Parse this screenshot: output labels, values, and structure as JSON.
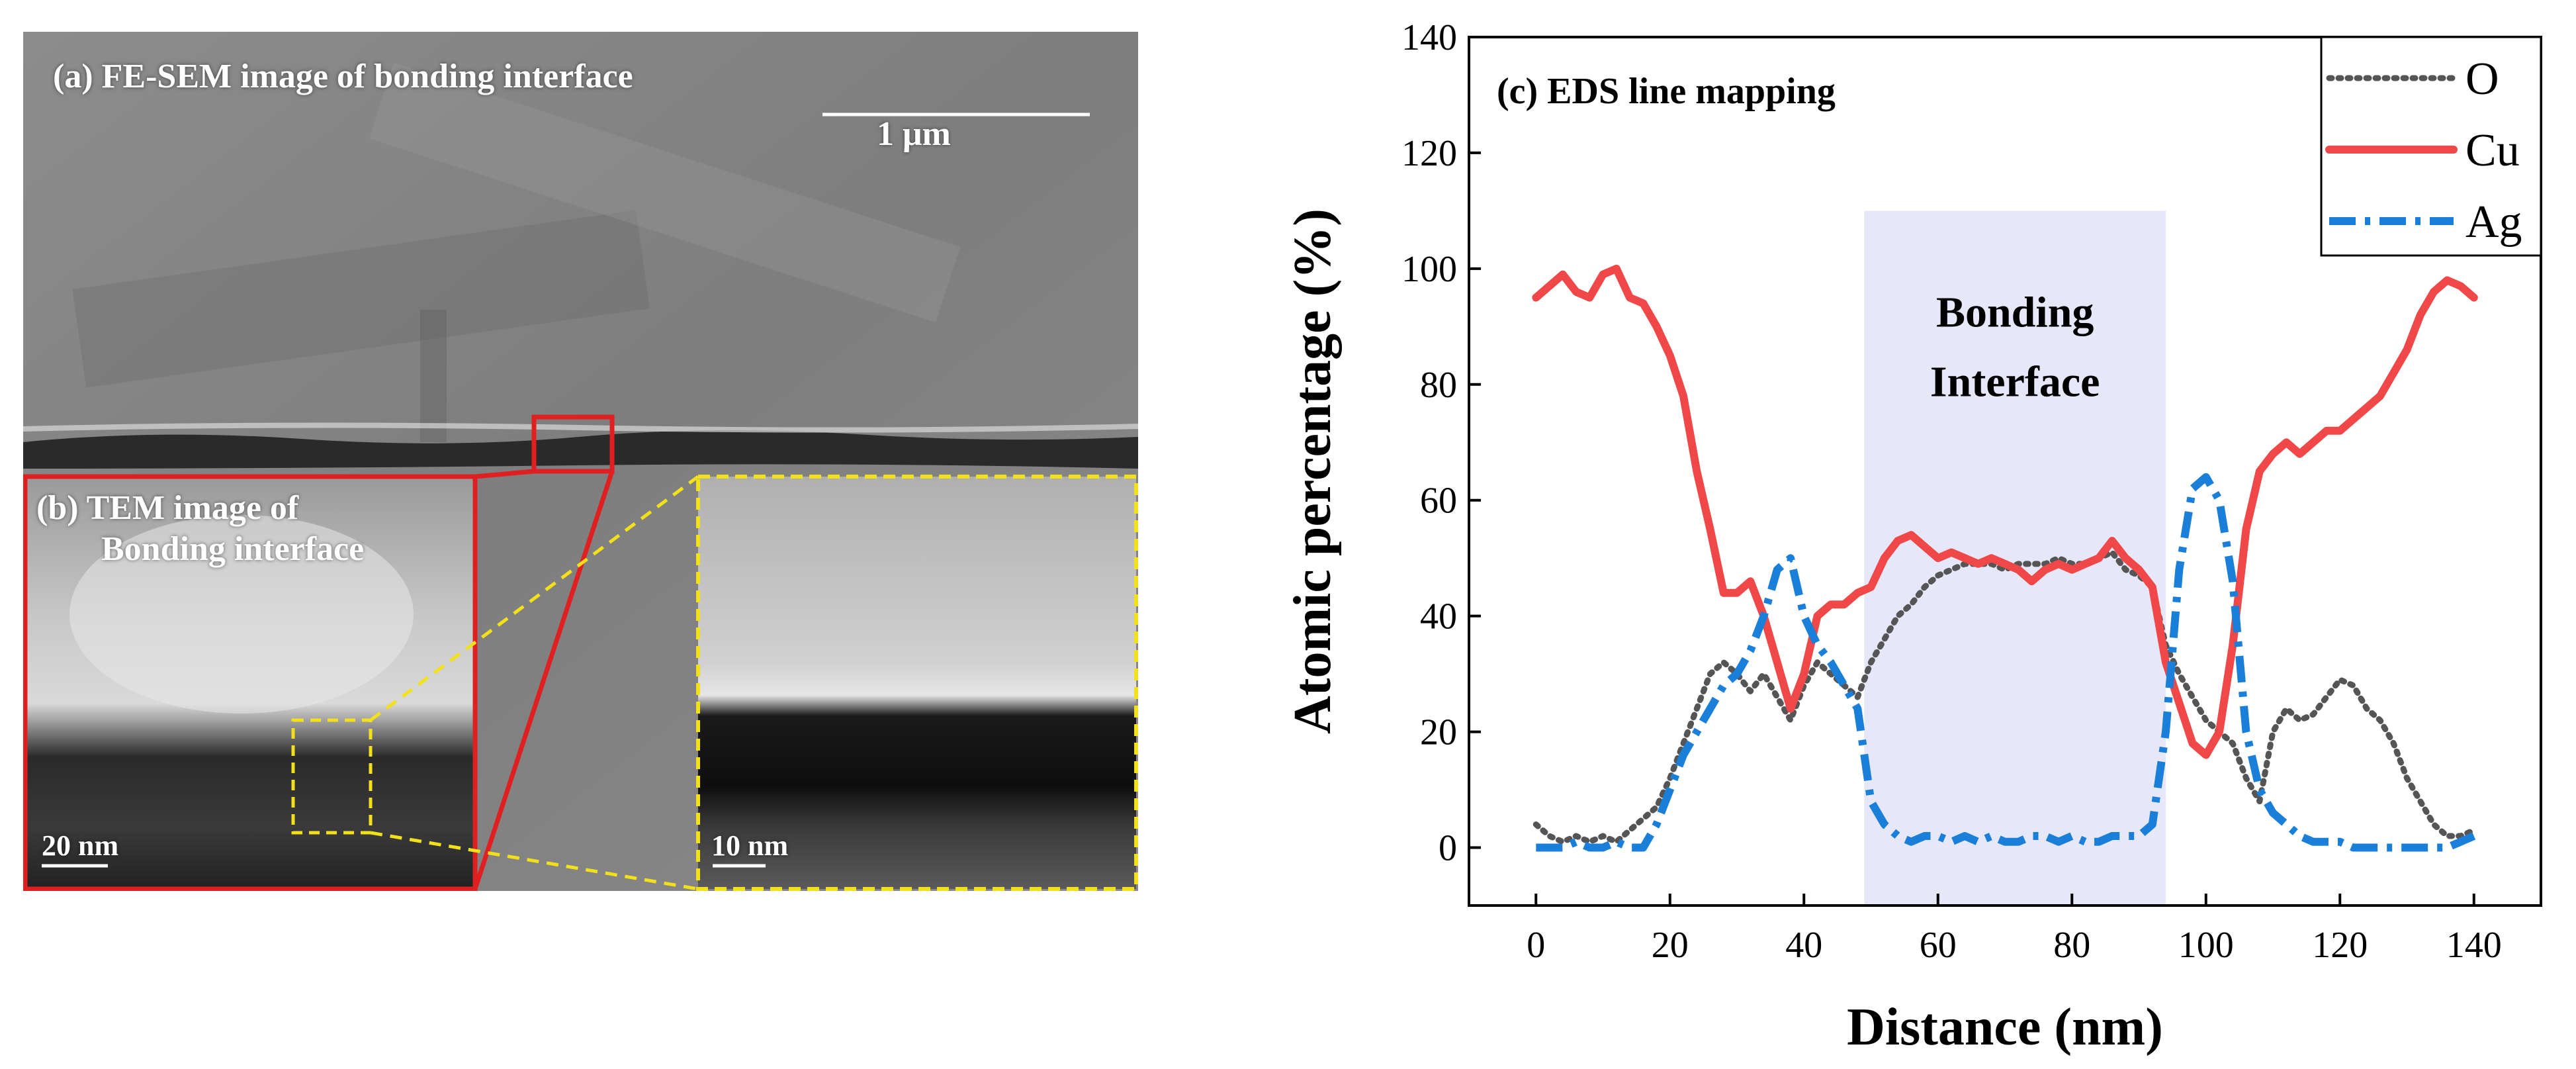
{
  "sem_panel": {
    "label_a": "(a) FE-SEM image of bonding interface",
    "scale_a": "1 μm",
    "label_b_line1": "(b) TEM image of",
    "label_b_line2": "Bonding interface",
    "scale_b": "20 nm",
    "scale_zoom": "10 nm"
  },
  "chart_data": {
    "type": "line",
    "title": "(c) EDS line mapping",
    "xlabel": "Distance (nm)",
    "ylabel": "Atomic percentage (%)",
    "xlim": [
      -10,
      150
    ],
    "ylim": [
      -10,
      140
    ],
    "xticks": [
      0,
      20,
      40,
      60,
      80,
      100,
      120,
      140
    ],
    "yticks": [
      0,
      20,
      40,
      60,
      80,
      100,
      120,
      140
    ],
    "region": {
      "label_line1": "Bonding",
      "label_line2": "Interface",
      "x_start": 49,
      "x_end": 94
    },
    "legend": {
      "position": "top-right",
      "entries": [
        "O",
        "Cu",
        "Ag"
      ]
    },
    "colors": {
      "O": "#555555",
      "Cu": "#f04848",
      "Ag": "#1a7fd9",
      "region": "#e6e8fa"
    },
    "x": [
      0,
      2,
      4,
      6,
      8,
      10,
      12,
      14,
      16,
      18,
      20,
      22,
      24,
      26,
      28,
      30,
      32,
      34,
      36,
      38,
      40,
      42,
      44,
      46,
      48,
      50,
      52,
      54,
      56,
      58,
      60,
      62,
      64,
      66,
      68,
      70,
      72,
      74,
      76,
      78,
      80,
      82,
      84,
      86,
      88,
      90,
      92,
      94,
      96,
      98,
      100,
      102,
      104,
      106,
      108,
      110,
      112,
      114,
      116,
      118,
      120,
      122,
      124,
      126,
      128,
      130,
      132,
      134,
      136,
      138,
      140
    ],
    "series": [
      {
        "name": "O",
        "values": [
          4,
          2,
          1,
          2,
          1,
          2,
          1,
          3,
          5,
          7,
          12,
          18,
          24,
          30,
          32,
          30,
          27,
          30,
          26,
          22,
          28,
          32,
          30,
          28,
          26,
          32,
          36,
          40,
          42,
          45,
          47,
          48,
          49,
          49,
          49,
          48,
          49,
          49,
          49,
          50,
          49,
          49,
          50,
          51,
          48,
          47,
          45,
          35,
          30,
          26,
          22,
          20,
          18,
          12,
          8,
          20,
          24,
          22,
          23,
          26,
          29,
          28,
          24,
          22,
          18,
          12,
          8,
          4,
          2,
          2,
          3
        ]
      },
      {
        "name": "Cu",
        "values": [
          95,
          97,
          99,
          96,
          95,
          99,
          100,
          95,
          94,
          90,
          85,
          78,
          65,
          55,
          44,
          44,
          46,
          40,
          32,
          24,
          30,
          40,
          42,
          42,
          44,
          45,
          50,
          53,
          54,
          52,
          50,
          51,
          50,
          49,
          50,
          49,
          48,
          46,
          48,
          49,
          48,
          49,
          50,
          53,
          50,
          48,
          45,
          32,
          25,
          18,
          16,
          20,
          35,
          55,
          65,
          68,
          70,
          68,
          70,
          72,
          72,
          74,
          76,
          78,
          82,
          86,
          92,
          96,
          98,
          97,
          95
        ]
      },
      {
        "name": "Ag",
        "values": [
          0,
          0,
          0,
          1,
          0,
          0,
          1,
          0,
          0,
          4,
          10,
          16,
          20,
          24,
          28,
          30,
          34,
          40,
          48,
          50,
          40,
          35,
          32,
          28,
          24,
          8,
          4,
          2,
          1,
          2,
          2,
          1,
          2,
          1,
          2,
          1,
          1,
          2,
          2,
          1,
          2,
          1,
          1,
          2,
          2,
          2,
          4,
          20,
          48,
          62,
          64,
          60,
          46,
          20,
          10,
          6,
          4,
          2,
          1,
          1,
          1,
          0,
          0,
          0,
          0,
          0,
          0,
          0,
          0,
          1,
          2
        ]
      }
    ]
  }
}
